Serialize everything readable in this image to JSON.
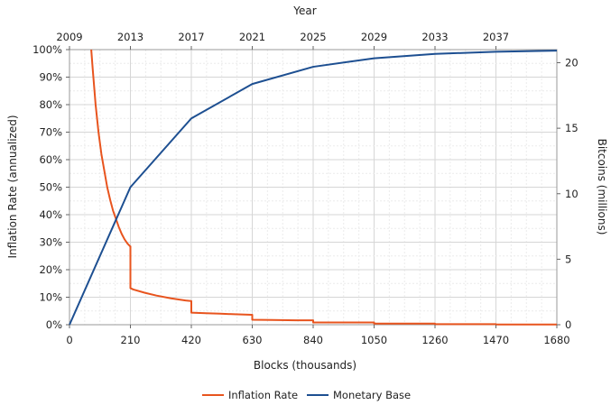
{
  "chart_data": {
    "type": "line",
    "xlabel": "Blocks (thousands)",
    "x2label": "Year",
    "ylabel_left": "Inflation Rate (annualized)",
    "ylabel_right": "Bitcoins (millions)",
    "xlim": [
      0,
      1680
    ],
    "x_ticks": [
      "0",
      "210",
      "420",
      "630",
      "840",
      "1050",
      "1260",
      "1470",
      "1680"
    ],
    "x2_ticks": [
      "2009",
      "2013",
      "2017",
      "2021",
      "2025",
      "2029",
      "2033",
      "2037"
    ],
    "ylim_left": [
      0,
      100
    ],
    "y_left_ticks": [
      "0%",
      "10%",
      "20%",
      "30%",
      "40%",
      "50%",
      "60%",
      "70%",
      "80%",
      "90%",
      "100%"
    ],
    "ylim_right": [
      0,
      21
    ],
    "y_right_ticks": [
      "0",
      "5",
      "10",
      "15",
      "20"
    ],
    "grid": true,
    "legend_position": "bottom-center",
    "series": [
      {
        "name": "Inflation Rate",
        "axis": "left",
        "color": "#e8541e",
        "x": [
          75,
          80,
          90,
          100,
          110,
          120,
          130,
          140,
          150,
          160,
          170,
          180,
          190,
          200,
          209,
          210,
          210,
          220,
          260,
          300,
          350,
          400,
          419,
          420,
          420,
          470,
          520,
          570,
          629,
          630,
          630,
          700,
          780,
          839,
          840,
          840,
          1049,
          1050,
          1050,
          1259,
          1260,
          1260,
          1469,
          1470,
          1470,
          1680
        ],
        "values": [
          100,
          93,
          80,
          70,
          62,
          56,
          50,
          45.5,
          41.5,
          38.5,
          35.5,
          33,
          31,
          29.5,
          28.5,
          28.5,
          13.3,
          12.8,
          11.6,
          10.6,
          9.6,
          8.8,
          8.6,
          8.6,
          4.4,
          4.2,
          4.0,
          3.8,
          3.6,
          3.6,
          1.8,
          1.7,
          1.6,
          1.6,
          1.6,
          0.8,
          0.8,
          0.8,
          0.4,
          0.4,
          0.4,
          0.2,
          0.2,
          0.2,
          0.1,
          0.1
        ]
      },
      {
        "name": "Monetary Base",
        "axis": "right",
        "color": "#1d4f91",
        "x": [
          0,
          210,
          420,
          630,
          840,
          1050,
          1260,
          1470,
          1680
        ],
        "values": [
          0,
          10.5,
          15.75,
          18.375,
          19.6875,
          20.34,
          20.67,
          20.84,
          20.92
        ]
      }
    ]
  }
}
